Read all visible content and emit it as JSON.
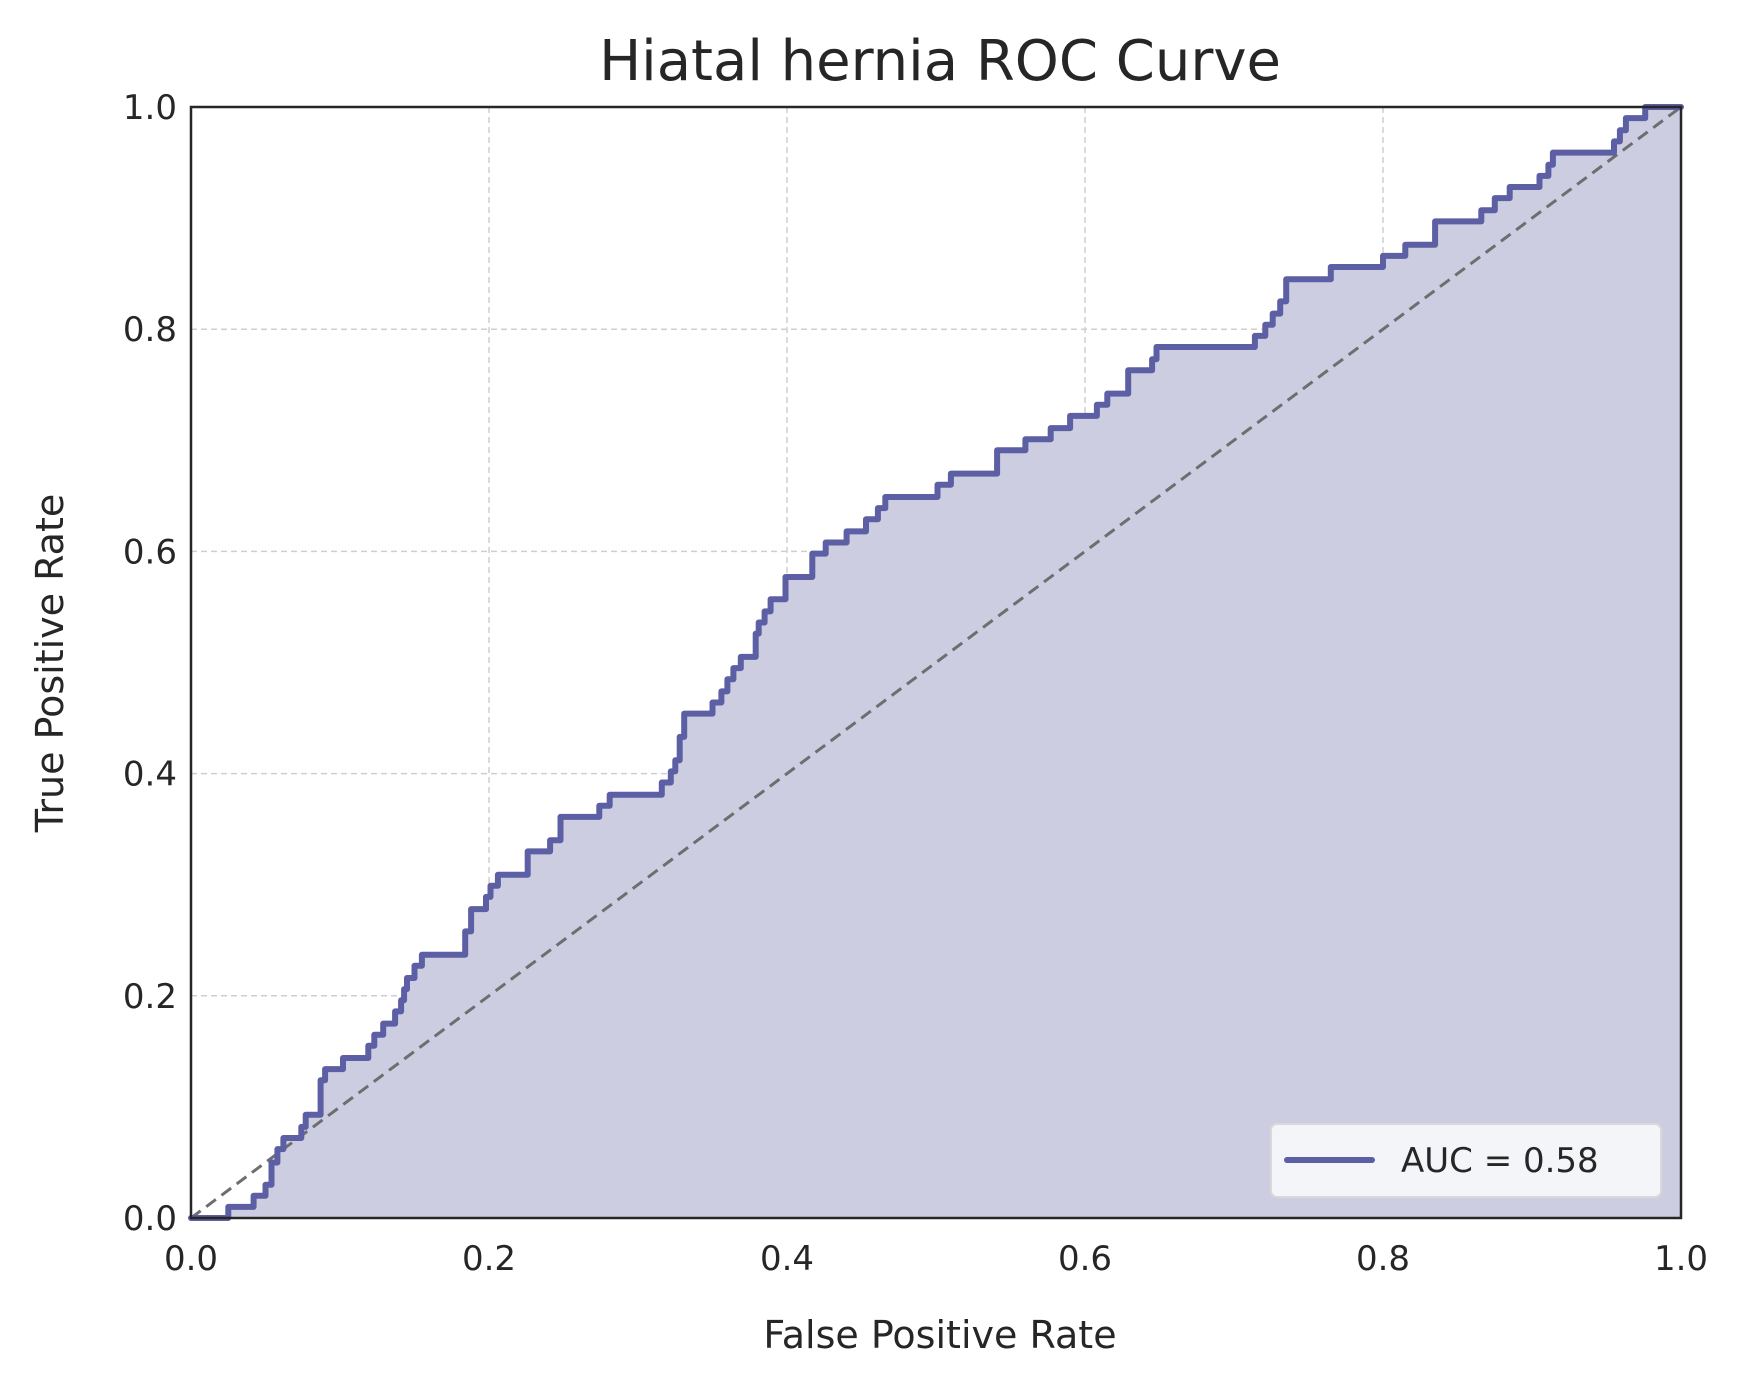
{
  "chart_data": {
    "type": "line",
    "title": "Hiatal hernia ROC Curve",
    "xlabel": "False Positive Rate",
    "ylabel": "True Positive Rate",
    "xlim": [
      0.0,
      1.0
    ],
    "ylim": [
      0.0,
      1.0
    ],
    "x_ticks": [
      "0.0",
      "0.2",
      "0.4",
      "0.6",
      "0.8",
      "1.0"
    ],
    "y_ticks": [
      "0.0",
      "0.2",
      "0.4",
      "0.6",
      "0.8",
      "1.0"
    ],
    "grid": true,
    "legend_position": "lower-right",
    "legend_label": "AUC = 0.58",
    "auc": 0.58,
    "colors": {
      "curve": "#5c5fa3",
      "fill": "#cdcde1",
      "diagonal": "#6e6e6e",
      "grid": "#cfcfcf",
      "axes": "#262626"
    },
    "series": [
      {
        "name": "AUC = 0.58",
        "points": [
          [
            0.0,
            0.0
          ],
          [
            0.025,
            0.0
          ],
          [
            0.025,
            0.01
          ],
          [
            0.042,
            0.01
          ],
          [
            0.042,
            0.02
          ],
          [
            0.05,
            0.02
          ],
          [
            0.05,
            0.03
          ],
          [
            0.054,
            0.03
          ],
          [
            0.054,
            0.05
          ],
          [
            0.058,
            0.05
          ],
          [
            0.058,
            0.062
          ],
          [
            0.062,
            0.062
          ],
          [
            0.062,
            0.072
          ],
          [
            0.074,
            0.072
          ],
          [
            0.074,
            0.082
          ],
          [
            0.077,
            0.082
          ],
          [
            0.077,
            0.093
          ],
          [
            0.087,
            0.093
          ],
          [
            0.087,
            0.124
          ],
          [
            0.09,
            0.124
          ],
          [
            0.09,
            0.134
          ],
          [
            0.102,
            0.134
          ],
          [
            0.102,
            0.144
          ],
          [
            0.119,
            0.144
          ],
          [
            0.119,
            0.155
          ],
          [
            0.123,
            0.155
          ],
          [
            0.123,
            0.165
          ],
          [
            0.129,
            0.165
          ],
          [
            0.129,
            0.175
          ],
          [
            0.137,
            0.175
          ],
          [
            0.137,
            0.186
          ],
          [
            0.141,
            0.186
          ],
          [
            0.141,
            0.196
          ],
          [
            0.143,
            0.196
          ],
          [
            0.143,
            0.206
          ],
          [
            0.145,
            0.206
          ],
          [
            0.145,
            0.216
          ],
          [
            0.15,
            0.216
          ],
          [
            0.15,
            0.227
          ],
          [
            0.155,
            0.227
          ],
          [
            0.155,
            0.237
          ],
          [
            0.184,
            0.237
          ],
          [
            0.184,
            0.258
          ],
          [
            0.188,
            0.258
          ],
          [
            0.188,
            0.278
          ],
          [
            0.198,
            0.278
          ],
          [
            0.198,
            0.289
          ],
          [
            0.201,
            0.289
          ],
          [
            0.201,
            0.299
          ],
          [
            0.206,
            0.299
          ],
          [
            0.206,
            0.309
          ],
          [
            0.226,
            0.309
          ],
          [
            0.226,
            0.33
          ],
          [
            0.241,
            0.33
          ],
          [
            0.241,
            0.34
          ],
          [
            0.248,
            0.34
          ],
          [
            0.248,
            0.361
          ],
          [
            0.274,
            0.361
          ],
          [
            0.274,
            0.371
          ],
          [
            0.281,
            0.371
          ],
          [
            0.281,
            0.381
          ],
          [
            0.316,
            0.381
          ],
          [
            0.316,
            0.392
          ],
          [
            0.322,
            0.392
          ],
          [
            0.322,
            0.402
          ],
          [
            0.325,
            0.402
          ],
          [
            0.325,
            0.412
          ],
          [
            0.328,
            0.412
          ],
          [
            0.328,
            0.433
          ],
          [
            0.331,
            0.433
          ],
          [
            0.331,
            0.454
          ],
          [
            0.35,
            0.454
          ],
          [
            0.35,
            0.464
          ],
          [
            0.356,
            0.464
          ],
          [
            0.356,
            0.474
          ],
          [
            0.36,
            0.474
          ],
          [
            0.36,
            0.485
          ],
          [
            0.364,
            0.485
          ],
          [
            0.364,
            0.495
          ],
          [
            0.369,
            0.495
          ],
          [
            0.369,
            0.505
          ],
          [
            0.379,
            0.505
          ],
          [
            0.379,
            0.526
          ],
          [
            0.381,
            0.526
          ],
          [
            0.381,
            0.536
          ],
          [
            0.385,
            0.536
          ],
          [
            0.385,
            0.546
          ],
          [
            0.389,
            0.546
          ],
          [
            0.389,
            0.557
          ],
          [
            0.399,
            0.557
          ],
          [
            0.399,
            0.577
          ],
          [
            0.417,
            0.577
          ],
          [
            0.417,
            0.598
          ],
          [
            0.426,
            0.598
          ],
          [
            0.426,
            0.608
          ],
          [
            0.44,
            0.608
          ],
          [
            0.44,
            0.618
          ],
          [
            0.453,
            0.618
          ],
          [
            0.453,
            0.629
          ],
          [
            0.461,
            0.629
          ],
          [
            0.461,
            0.639
          ],
          [
            0.466,
            0.639
          ],
          [
            0.466,
            0.649
          ],
          [
            0.501,
            0.649
          ],
          [
            0.501,
            0.66
          ],
          [
            0.51,
            0.66
          ],
          [
            0.51,
            0.67
          ],
          [
            0.541,
            0.67
          ],
          [
            0.541,
            0.691
          ],
          [
            0.56,
            0.691
          ],
          [
            0.56,
            0.701
          ],
          [
            0.577,
            0.701
          ],
          [
            0.577,
            0.711
          ],
          [
            0.59,
            0.711
          ],
          [
            0.59,
            0.722
          ],
          [
            0.608,
            0.722
          ],
          [
            0.608,
            0.732
          ],
          [
            0.615,
            0.732
          ],
          [
            0.615,
            0.742
          ],
          [
            0.629,
            0.742
          ],
          [
            0.629,
            0.763
          ],
          [
            0.645,
            0.763
          ],
          [
            0.645,
            0.773
          ],
          [
            0.648,
            0.773
          ],
          [
            0.648,
            0.784
          ],
          [
            0.714,
            0.784
          ],
          [
            0.714,
            0.794
          ],
          [
            0.721,
            0.794
          ],
          [
            0.721,
            0.804
          ],
          [
            0.726,
            0.804
          ],
          [
            0.726,
            0.814
          ],
          [
            0.731,
            0.814
          ],
          [
            0.731,
            0.825
          ],
          [
            0.735,
            0.825
          ],
          [
            0.735,
            0.845
          ],
          [
            0.765,
            0.845
          ],
          [
            0.765,
            0.856
          ],
          [
            0.8,
            0.856
          ],
          [
            0.8,
            0.866
          ],
          [
            0.815,
            0.866
          ],
          [
            0.815,
            0.876
          ],
          [
            0.835,
            0.876
          ],
          [
            0.835,
            0.897
          ],
          [
            0.866,
            0.897
          ],
          [
            0.866,
            0.907
          ],
          [
            0.875,
            0.907
          ],
          [
            0.875,
            0.918
          ],
          [
            0.885,
            0.918
          ],
          [
            0.885,
            0.928
          ],
          [
            0.905,
            0.928
          ],
          [
            0.905,
            0.938
          ],
          [
            0.911,
            0.938
          ],
          [
            0.911,
            0.948
          ],
          [
            0.914,
            0.948
          ],
          [
            0.914,
            0.959
          ],
          [
            0.955,
            0.959
          ],
          [
            0.955,
            0.969
          ],
          [
            0.959,
            0.969
          ],
          [
            0.959,
            0.979
          ],
          [
            0.963,
            0.979
          ],
          [
            0.963,
            0.99
          ],
          [
            0.976,
            0.99
          ],
          [
            0.976,
            1.0
          ],
          [
            1.0,
            1.0
          ]
        ]
      }
    ]
  }
}
